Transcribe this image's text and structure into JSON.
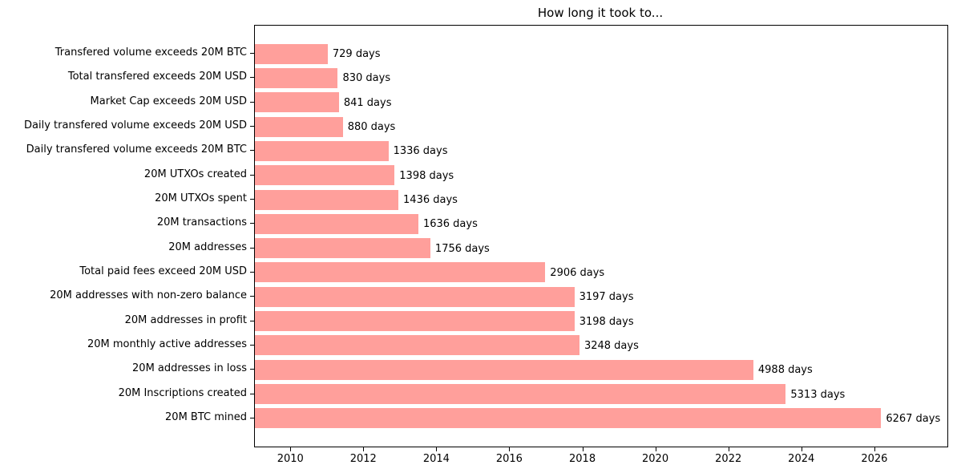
{
  "title": "How long it took to...",
  "chart_data": {
    "type": "bar",
    "orientation": "horizontal",
    "title": "How long it took to...",
    "unit": "days",
    "bar_color": "#ff9f9b",
    "categories": [
      "Transfered volume exceeds 20M BTC",
      "Total transfered exceeds 20M USD",
      "Market Cap exceeds 20M USD",
      "Daily transfered volume exceeds 20M USD",
      "Daily transfered volume exceeds 20M BTC",
      "20M UTXOs created",
      "20M UTXOs spent",
      "20M transactions",
      "20M addresses",
      "Total paid fees exceed 20M USD",
      "20M addresses with non-zero balance",
      "20M addresses in profit",
      "20M monthly active addresses",
      "20M addresses in loss",
      "20M Inscriptions created",
      "20M BTC mined"
    ],
    "values": [
      729,
      830,
      841,
      880,
      1336,
      1398,
      1436,
      1636,
      1756,
      2906,
      3197,
      3198,
      3248,
      4988,
      5313,
      6267
    ],
    "value_labels": [
      "729 days",
      "830 days",
      "841 days",
      "880 days",
      "1336 days",
      "1398 days",
      "1436 days",
      "1636 days",
      "1756 days",
      "2906 days",
      "3197 days",
      "3198 days",
      "3248 days",
      "4988 days",
      "5313 days",
      "6267 days"
    ],
    "x_axis": {
      "tick_labels": [
        "2010",
        "2012",
        "2014",
        "2016",
        "2018",
        "2020",
        "2022",
        "2024",
        "2026"
      ],
      "tick_values_days": [
        363,
        1093,
        1824,
        2554,
        3285,
        4015,
        4746,
        5476,
        6207
      ],
      "xlim_days": [
        0,
        6930
      ],
      "grid": false
    },
    "legend": null
  }
}
